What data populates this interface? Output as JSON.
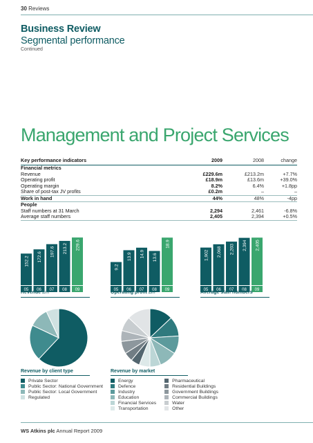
{
  "header": {
    "page_number": "30",
    "section": "Reviews"
  },
  "title": {
    "line1": "Business Review",
    "line2": "Segmental performance",
    "line3": "Continued"
  },
  "section_title": "Management and Project Services",
  "kpi_table": {
    "headers": [
      "Key performance indicators",
      "2009",
      "2008",
      "change"
    ],
    "rows": [
      {
        "type": "sub",
        "cells": [
          "Financial metrics",
          "",
          "",
          ""
        ]
      },
      {
        "type": "normal",
        "cells": [
          "Revenue",
          "£229.6m",
          "£213.2m",
          "+7.7%"
        ]
      },
      {
        "type": "normal",
        "cells": [
          "Operating profit",
          "£18.9m",
          "£13.6m",
          "+39.0%"
        ]
      },
      {
        "type": "normal",
        "cells": [
          "Operating margin",
          "8.2%",
          "6.4%",
          "+1.8pp"
        ]
      },
      {
        "type": "normal",
        "cells": [
          "Share of post-tax JV profits",
          "£0.2m",
          "–",
          "–"
        ]
      },
      {
        "type": "bold",
        "cells": [
          "Work in hand",
          "44%",
          "48%",
          "-4pp"
        ]
      },
      {
        "type": "sub",
        "cells": [
          "People",
          "",
          "",
          ""
        ]
      },
      {
        "type": "normal",
        "cells": [
          "Staff numbers at 31 March",
          "2,294",
          "2,461",
          "-6.8%"
        ]
      },
      {
        "type": "last",
        "cells": [
          "Average staff numbers",
          "2,405",
          "2,394",
          "+0.5%"
        ]
      }
    ]
  },
  "colors": {
    "dark_teal": "#0f5c63",
    "highlight_green": "#3aa66e"
  },
  "chart_data": [
    {
      "type": "bar",
      "title": "Revenue",
      "unit": "£m",
      "categories": [
        "05",
        "06",
        "07",
        "08",
        "09"
      ],
      "values": [
        152.2,
        172.6,
        197.6,
        213.2,
        229.6
      ],
      "labels": [
        "152.2",
        "172.6",
        "197.6",
        "213.2",
        "229.6"
      ],
      "ylim": [
        0,
        240
      ]
    },
    {
      "type": "bar",
      "title": "Operating profit",
      "unit": "£m",
      "categories": [
        "05",
        "06",
        "07",
        "08",
        "09"
      ],
      "values": [
        9.2,
        13.9,
        14.9,
        13.6,
        18.9
      ],
      "labels": [
        "9.2",
        "13.9",
        "14.9",
        "13.6",
        "18.9"
      ],
      "ylim": [
        0,
        19.8
      ]
    },
    {
      "type": "bar",
      "title": "Average staff numbers",
      "unit": "",
      "categories": [
        "05",
        "06",
        "07",
        "08",
        "09"
      ],
      "values": [
        1902,
        2068,
        2203,
        2394,
        2405
      ],
      "labels": [
        "1,902",
        "2,068",
        "2,203",
        "2,394",
        "2,405"
      ],
      "ylim": [
        0,
        2520
      ]
    },
    {
      "type": "pie",
      "title": "Revenue by client type",
      "labels": [
        "Private Sector",
        "Public Sector: National Government",
        "Public Sector: Local Government",
        "Regulated"
      ],
      "values": [
        62,
        20,
        11,
        7
      ],
      "colors": [
        "#0f5c63",
        "#3f8b8e",
        "#8db8b8",
        "#cfe1e1"
      ]
    },
    {
      "type": "pie",
      "title": "Revenue by market",
      "labels": [
        "Energy",
        "Defence",
        "Industry",
        "Education",
        "Financial Services",
        "Transportation",
        "Pharmaceutical",
        "Residential Buildings",
        "Government Buildings",
        "Commercial Buildings",
        "Water",
        "Other"
      ],
      "values": [
        13,
        11,
        10,
        10,
        6,
        6,
        5,
        5,
        7,
        6,
        8,
        13
      ],
      "colors": [
        "#0f5c63",
        "#2f7a7e",
        "#5c9a9c",
        "#8db8b8",
        "#bcd6d6",
        "#dde9e9",
        "#53666f",
        "#717d84",
        "#8d979d",
        "#adb4b9",
        "#c8cdd0",
        "#e1e4e6"
      ]
    }
  ],
  "footer": {
    "company": "WS Atkins plc",
    "doc": "Annual Report 2009"
  }
}
